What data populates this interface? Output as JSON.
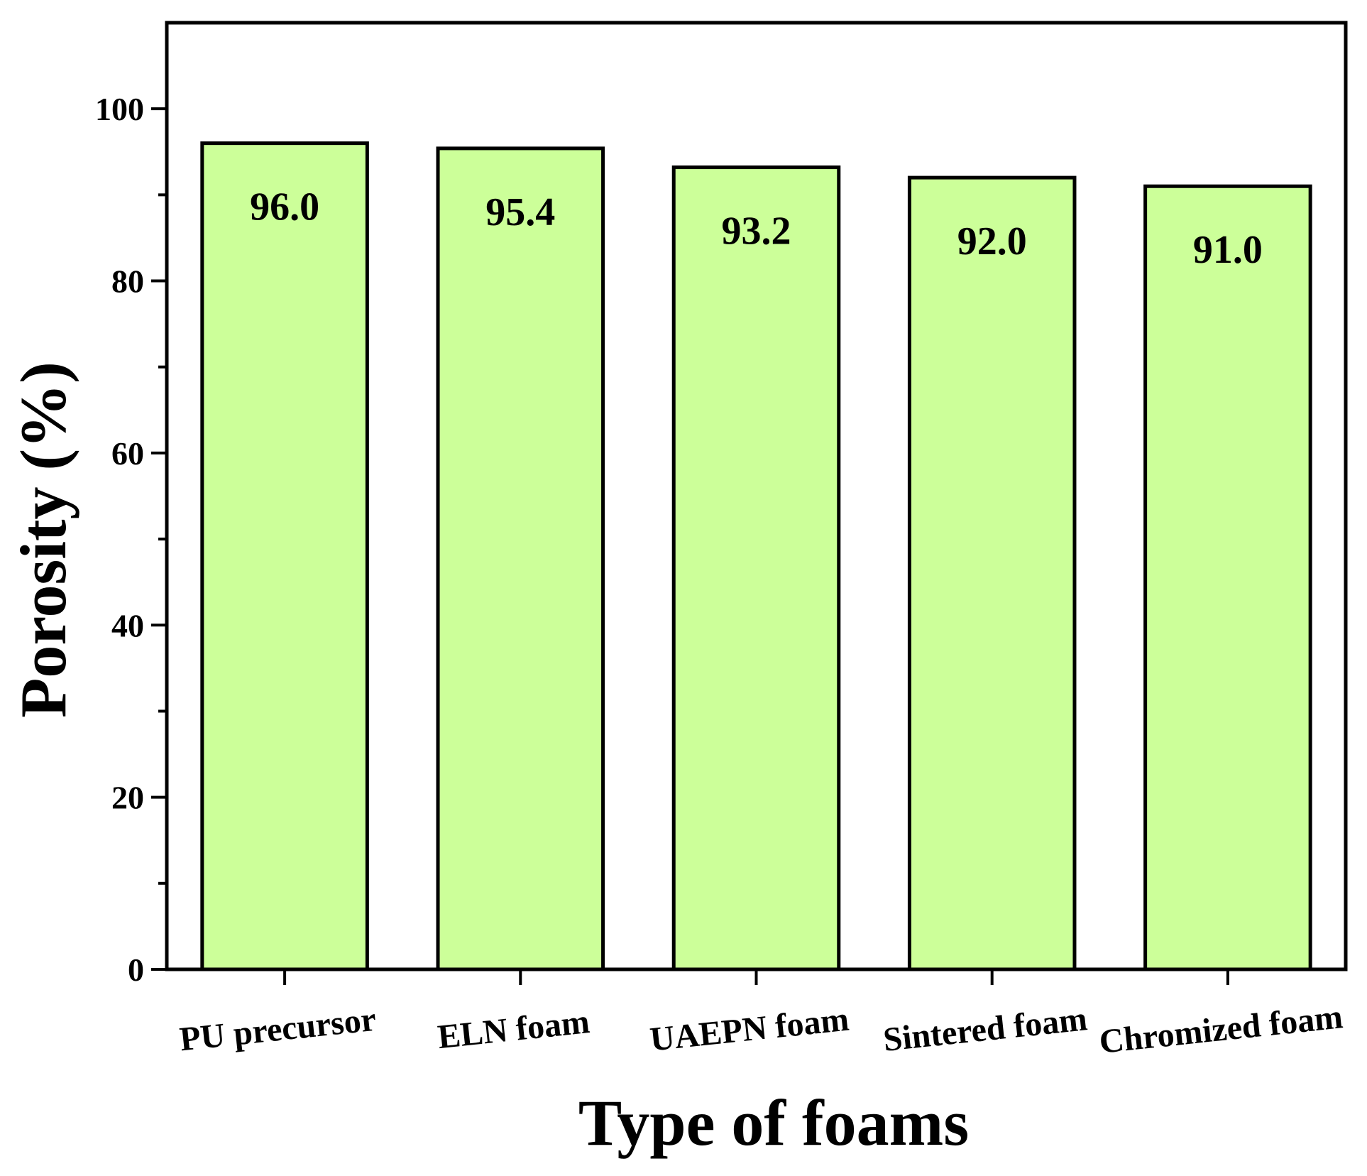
{
  "chart_data": {
    "type": "bar",
    "categories": [
      "PU precursor",
      "ELN foam",
      "UAEPN foam",
      "Sintered foam",
      "Chromized foam"
    ],
    "values": [
      96.0,
      95.4,
      93.2,
      92.0,
      91.0
    ],
    "data_labels": [
      "96.0",
      "95.4",
      "93.2",
      "92.0",
      "91.0"
    ],
    "title": "",
    "xlabel": "Type of foams",
    "ylabel": "Porosity (%)",
    "ylim": [
      0,
      110
    ],
    "yticks": [
      0,
      20,
      40,
      60,
      80,
      100
    ],
    "ytick_labels": [
      "0",
      "20",
      "40",
      "60",
      "80",
      "100"
    ],
    "minor_ytick_step": 10,
    "grid": false,
    "legend": "none",
    "bar_color": "#ccff99",
    "edge_color": "#000000"
  }
}
